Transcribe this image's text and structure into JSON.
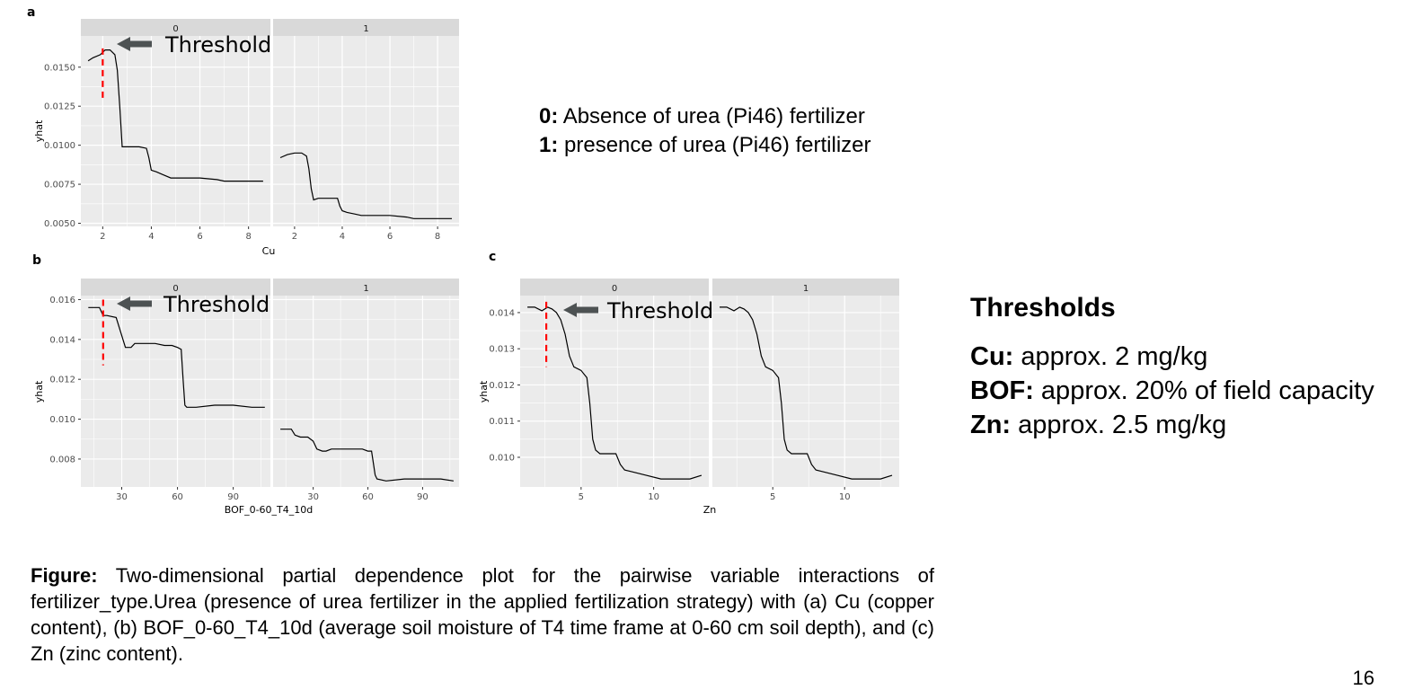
{
  "panels": {
    "a": {
      "letter": "a"
    },
    "b": {
      "letter": "b"
    },
    "c": {
      "letter": "c"
    }
  },
  "legend": {
    "item0_key": "0:",
    "item0_text": " Absence of urea (Pi46) fertilizer",
    "item1_key": "1:",
    "item1_text": " presence of urea (Pi46) fertilizer"
  },
  "thresholds_box": {
    "title": "Thresholds",
    "cu_key": "Cu:",
    "cu_text": " approx. 2 mg/kg",
    "bof_key": "BOF:",
    "bof_text": " approx. 20% of field capacity",
    "zn_key": "Zn:",
    "zn_text": " approx. 2.5 mg/kg"
  },
  "caption": {
    "label": "Figure:",
    "text": " Two-dimensional partial dependence plot for the pairwise variable interactions of fertilizer_type.Urea (presence of urea fertilizer in the applied fertilization strategy) with (a) Cu (copper content), (b) BOF_0-60_T4_10d (average soil moisture of T4 time frame at 0-60 cm soil depth), and (c) Zn (zinc content)."
  },
  "page_number": "16",
  "colors": {
    "panel_bg": "#ebebeb",
    "strip_bg": "#d9d9d9",
    "grid": "#ffffff",
    "line": "#000000",
    "threshold_line": "#ff0000",
    "arrow": "#4d5253"
  },
  "chart_data": [
    {
      "id": "a",
      "type": "line",
      "xlabel": "Cu",
      "ylabel": "yhat",
      "xlim": [
        1.1,
        8.9
      ],
      "ylim": [
        0.0048,
        0.017
      ],
      "xticks": [
        2,
        4,
        6,
        8
      ],
      "xtick_labels": [
        "2",
        "4",
        "6",
        "8"
      ],
      "yticks": [
        0.005,
        0.0075,
        0.01,
        0.0125,
        0.015
      ],
      "ytick_labels": [
        "0.0050",
        "0.0075",
        "0.0100",
        "0.0125",
        "0.0150"
      ],
      "annotation": "Threshold",
      "threshold_x": 2.0,
      "threshold_y_range": [
        0.0128,
        0.0162
      ],
      "facets": [
        {
          "strip": "0",
          "x": [
            1.4,
            1.6,
            1.9,
            2.1,
            2.3,
            2.5,
            2.6,
            2.7,
            2.8,
            3.0,
            3.2,
            3.5,
            3.8,
            3.9,
            4.0,
            4.2,
            4.5,
            4.8,
            5.2,
            6.0,
            6.7,
            7.0,
            8.0,
            8.6
          ],
          "y": [
            0.0154,
            0.0156,
            0.0158,
            0.0161,
            0.0161,
            0.0158,
            0.0148,
            0.0125,
            0.0099,
            0.0099,
            0.0099,
            0.0099,
            0.0098,
            0.0092,
            0.0084,
            0.0083,
            0.0081,
            0.0079,
            0.0079,
            0.0079,
            0.0078,
            0.0077,
            0.0077,
            0.0077
          ]
        },
        {
          "strip": "1",
          "x": [
            1.4,
            1.7,
            2.0,
            2.3,
            2.5,
            2.6,
            2.7,
            2.8,
            3.0,
            3.2,
            3.5,
            3.8,
            3.9,
            4.0,
            4.2,
            4.5,
            4.8,
            5.2,
            6.0,
            6.7,
            7.0,
            8.0,
            8.6
          ],
          "y": [
            0.0092,
            0.0094,
            0.0095,
            0.0095,
            0.0093,
            0.0085,
            0.0072,
            0.0065,
            0.0066,
            0.0066,
            0.0066,
            0.0066,
            0.0061,
            0.0058,
            0.0057,
            0.0056,
            0.0055,
            0.0055,
            0.0055,
            0.0054,
            0.0053,
            0.0053,
            0.0053
          ]
        }
      ]
    },
    {
      "id": "b",
      "type": "line",
      "xlabel": "BOF_0-60_T4_10d",
      "ylabel": "yhat",
      "xlim": [
        8,
        110
      ],
      "ylim": [
        0.0066,
        0.0162
      ],
      "xticks": [
        30,
        60,
        90
      ],
      "xtick_labels": [
        "30",
        "60",
        "90"
      ],
      "yticks": [
        0.008,
        0.01,
        0.012,
        0.014,
        0.016
      ],
      "ytick_labels": [
        "0.008",
        "0.010",
        "0.012",
        "0.014",
        "0.016"
      ],
      "annotation": "Threshold",
      "threshold_x": 20,
      "threshold_y_range": [
        0.0127,
        0.016
      ],
      "facets": [
        {
          "strip": "0",
          "x": [
            12,
            18,
            20,
            22,
            27,
            30,
            32,
            35,
            37,
            40,
            43,
            48,
            53,
            57,
            60,
            62,
            63,
            64,
            65,
            70,
            80,
            90,
            100,
            107
          ],
          "y": [
            0.0156,
            0.0156,
            0.0152,
            0.0152,
            0.0151,
            0.0142,
            0.0136,
            0.0136,
            0.0138,
            0.0138,
            0.0138,
            0.0138,
            0.0137,
            0.0137,
            0.0136,
            0.0135,
            0.012,
            0.0107,
            0.0106,
            0.0106,
            0.0107,
            0.0107,
            0.0106,
            0.0106
          ]
        },
        {
          "strip": "1",
          "x": [
            12,
            18,
            20,
            23,
            27,
            30,
            32,
            35,
            37,
            40,
            43,
            48,
            53,
            57,
            60,
            62,
            63,
            64,
            65,
            70,
            80,
            90,
            100,
            107
          ],
          "y": [
            0.0095,
            0.0095,
            0.0092,
            0.0091,
            0.0091,
            0.0089,
            0.0085,
            0.0084,
            0.0084,
            0.0085,
            0.0085,
            0.0085,
            0.0085,
            0.0085,
            0.0084,
            0.0084,
            0.0078,
            0.0072,
            0.007,
            0.0069,
            0.007,
            0.007,
            0.007,
            0.0069
          ]
        }
      ]
    },
    {
      "id": "c",
      "type": "line",
      "xlabel": "Zn",
      "ylabel": "yhat",
      "xlim": [
        0.8,
        13.8
      ],
      "ylim": [
        0.00918,
        0.01447
      ],
      "xticks": [
        5,
        10
      ],
      "xtick_labels": [
        "5",
        "10"
      ],
      "yticks": [
        0.01,
        0.011,
        0.012,
        0.013,
        0.014
      ],
      "ytick_labels": [
        "0.010",
        "0.011",
        "0.012",
        "0.013",
        "0.014"
      ],
      "annotation": "Threshold",
      "threshold_x": 2.6,
      "threshold_y_range": [
        0.0125,
        0.0143
      ],
      "facets": [
        {
          "strip": "0",
          "x": [
            1.3,
            1.8,
            2.3,
            2.7,
            3.0,
            3.3,
            3.6,
            3.9,
            4.2,
            4.5,
            5.0,
            5.4,
            5.6,
            5.8,
            6.0,
            6.3,
            6.8,
            7.4,
            7.7,
            8.0,
            8.5,
            9.5,
            10.5,
            11.5,
            12.5,
            13.3
          ],
          "y": [
            0.01415,
            0.01415,
            0.01405,
            0.01415,
            0.0141,
            0.014,
            0.0138,
            0.0134,
            0.0128,
            0.0125,
            0.0124,
            0.0122,
            0.0115,
            0.0105,
            0.0102,
            0.0101,
            0.0101,
            0.0101,
            0.0098,
            0.00965,
            0.0096,
            0.0095,
            0.0094,
            0.0094,
            0.0094,
            0.0095
          ]
        },
        {
          "strip": "1",
          "x": [
            1.3,
            1.8,
            2.3,
            2.7,
            3.0,
            3.3,
            3.6,
            3.9,
            4.2,
            4.5,
            5.0,
            5.4,
            5.6,
            5.8,
            6.0,
            6.3,
            6.8,
            7.4,
            7.7,
            8.0,
            8.5,
            9.5,
            10.5,
            11.5,
            12.5,
            13.3
          ],
          "y": [
            0.01415,
            0.01415,
            0.01405,
            0.01415,
            0.0141,
            0.014,
            0.0138,
            0.0134,
            0.0128,
            0.0125,
            0.0124,
            0.0122,
            0.0115,
            0.0105,
            0.0102,
            0.0101,
            0.0101,
            0.0101,
            0.0098,
            0.00965,
            0.0096,
            0.0095,
            0.0094,
            0.0094,
            0.0094,
            0.0095
          ]
        }
      ]
    }
  ]
}
